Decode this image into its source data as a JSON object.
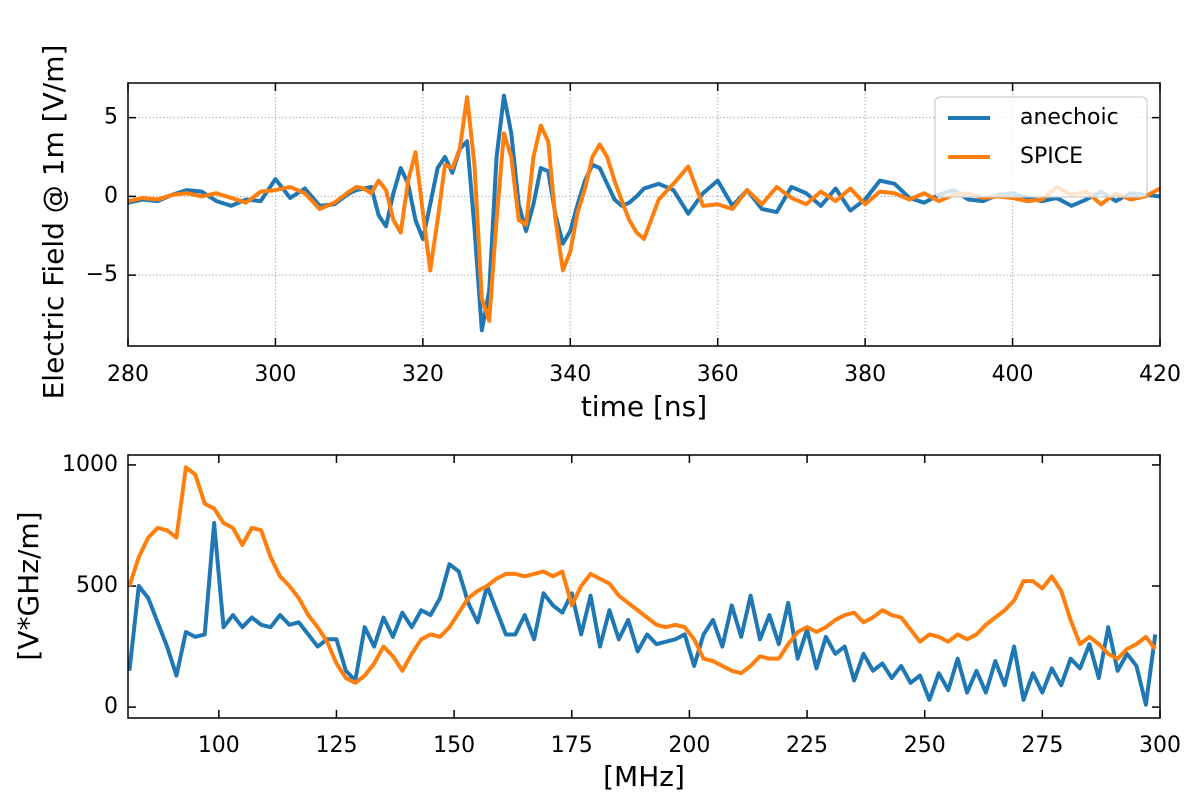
{
  "chart_data": [
    {
      "type": "line",
      "xlabel": "time [ns]",
      "ylabel": "Electric Field @ 1m [V/m]",
      "x": [
        280,
        282,
        284,
        286,
        288,
        290,
        292,
        294,
        296,
        298,
        300,
        302,
        304,
        306,
        308,
        310,
        311,
        312,
        313,
        314,
        315,
        316,
        317,
        318,
        319,
        320,
        321,
        322,
        323,
        324,
        325,
        326,
        327,
        328,
        329,
        330,
        331,
        332,
        333,
        334,
        335,
        336,
        337,
        338,
        339,
        340,
        341,
        342,
        343,
        344,
        345,
        346,
        347,
        348,
        349,
        350,
        352,
        354,
        356,
        358,
        360,
        362,
        364,
        366,
        368,
        370,
        372,
        374,
        376,
        378,
        380,
        382,
        384,
        386,
        388,
        390,
        392,
        394,
        396,
        398,
        400,
        402,
        404,
        406,
        408,
        410,
        412,
        414,
        416,
        418,
        420
      ],
      "series": [
        {
          "name": "anechoic",
          "color": "#1f77b4",
          "values": [
            -0.4,
            -0.2,
            -0.3,
            0.1,
            0.4,
            0.3,
            -0.3,
            -0.6,
            -0.2,
            -0.3,
            1.1,
            -0.1,
            0.5,
            -0.6,
            -0.5,
            0.2,
            0.4,
            0.5,
            0.6,
            -1.2,
            -1.9,
            0.2,
            1.8,
            0.8,
            -1.5,
            -2.7,
            -0.5,
            1.8,
            2.5,
            1.5,
            3.0,
            3.5,
            -2,
            -8.5,
            -6,
            2.5,
            6.4,
            4,
            -0.5,
            -2.2,
            -0.5,
            1.8,
            1.6,
            -1.2,
            -3.0,
            -2.2,
            -0.5,
            1.0,
            2.0,
            1.8,
            0.8,
            -0.2,
            -0.6,
            -0.4,
            0,
            0.5,
            0.8,
            0.4,
            -1.1,
            0.2,
            1.0,
            -0.6,
            0.4,
            -0.8,
            -1.0,
            0.6,
            0.2,
            -0.6,
            0.5,
            -0.9,
            -0.2,
            1.0,
            0.8,
            -0.1,
            -0.4,
            0.1,
            0.4,
            -0.2,
            -0.3,
            0.1,
            0.2,
            -0.1,
            -0.3,
            -0.1,
            -0.6,
            -0.2,
            0.3,
            -0.3,
            0.2,
            0.1,
            0.0
          ]
        },
        {
          "name": "SPICE",
          "color": "#ff7f0e",
          "values": [
            -0.3,
            -0.1,
            -0.2,
            0.1,
            0.2,
            0,
            0.2,
            -0.1,
            -0.4,
            0.3,
            0.4,
            0.6,
            0.2,
            -0.8,
            -0.4,
            0.3,
            0.6,
            0.5,
            0.2,
            1.0,
            0.4,
            -1.5,
            -2.3,
            1.0,
            2.8,
            -1.0,
            -4.7,
            -1.5,
            2.0,
            1.8,
            3.0,
            6.3,
            2,
            -6.5,
            -7.9,
            -1.5,
            4.0,
            2.5,
            -1.5,
            -1.8,
            2.5,
            4.5,
            3.5,
            -1.5,
            -4.7,
            -3.5,
            -1.0,
            0.5,
            2.5,
            3.3,
            2.5,
            1.0,
            -0.3,
            -1.5,
            -2.3,
            -2.7,
            -0.2,
            0.8,
            1.9,
            -0.6,
            -0.5,
            -0.8,
            0.4,
            -0.5,
            0.6,
            -0.1,
            -0.5,
            0.3,
            -0.3,
            0.5,
            -0.5,
            0.3,
            0.2,
            -0.2,
            0.2,
            -0.3,
            0.1,
            0.2,
            -0.1,
            0.0,
            -0.1,
            -0.3,
            -0.2,
            0.6,
            0.1,
            0.3,
            -0.5,
            0.2,
            -0.2,
            0.0,
            0.5
          ]
        }
      ],
      "xlim": [
        280,
        420
      ],
      "xticks": [
        280,
        300,
        320,
        340,
        360,
        380,
        400,
        420
      ],
      "ylim": [
        -9.5,
        7.2
      ],
      "yticks": [
        {
          "value": -5,
          "label": "−5"
        },
        0,
        5
      ],
      "grid": true,
      "legend": "upper right"
    },
    {
      "type": "line",
      "xlabel": "[MHz]",
      "ylabel": "[V*GHz/m]",
      "x": [
        81,
        83,
        85,
        87,
        89,
        91,
        93,
        95,
        97,
        99,
        101,
        103,
        105,
        107,
        109,
        111,
        113,
        115,
        117,
        119,
        121,
        123,
        125,
        127,
        129,
        131,
        133,
        135,
        137,
        139,
        141,
        143,
        145,
        147,
        149,
        151,
        153,
        155,
        157,
        159,
        161,
        163,
        165,
        167,
        169,
        171,
        173,
        175,
        177,
        179,
        181,
        183,
        185,
        187,
        189,
        191,
        193,
        195,
        197,
        199,
        201,
        203,
        205,
        207,
        209,
        211,
        213,
        215,
        217,
        219,
        221,
        223,
        225,
        227,
        229,
        231,
        233,
        235,
        237,
        239,
        241,
        243,
        245,
        247,
        249,
        251,
        253,
        255,
        257,
        259,
        261,
        263,
        265,
        267,
        269,
        271,
        273,
        275,
        277,
        279,
        281,
        283,
        285,
        287,
        289,
        291,
        293,
        295,
        297,
        299
      ],
      "series": [
        {
          "name": "anechoic",
          "color": "#1f77b4",
          "values": [
            150,
            500,
            450,
            350,
            250,
            130,
            310,
            290,
            300,
            760,
            330,
            380,
            330,
            370,
            340,
            330,
            380,
            340,
            350,
            300,
            250,
            280,
            280,
            150,
            110,
            330,
            250,
            370,
            290,
            390,
            330,
            400,
            380,
            450,
            590,
            560,
            430,
            350,
            500,
            400,
            300,
            300,
            380,
            280,
            470,
            420,
            390,
            470,
            300,
            460,
            250,
            400,
            280,
            360,
            230,
            300,
            260,
            270,
            280,
            300,
            170,
            300,
            360,
            250,
            420,
            290,
            460,
            280,
            380,
            260,
            430,
            200,
            320,
            160,
            290,
            220,
            250,
            110,
            220,
            150,
            180,
            120,
            170,
            100,
            130,
            30,
            140,
            70,
            200,
            60,
            150,
            60,
            190,
            90,
            250,
            30,
            140,
            60,
            160,
            90,
            200,
            160,
            260,
            120,
            330,
            150,
            220,
            170,
            10,
            300
          ]
        },
        {
          "name": "SPICE",
          "color": "#ff7f0e",
          "values": [
            500,
            620,
            700,
            740,
            730,
            700,
            990,
            960,
            840,
            820,
            760,
            740,
            670,
            740,
            730,
            620,
            540,
            500,
            450,
            380,
            330,
            270,
            180,
            120,
            100,
            130,
            180,
            250,
            210,
            150,
            220,
            280,
            300,
            290,
            330,
            390,
            450,
            480,
            500,
            530,
            550,
            550,
            540,
            550,
            560,
            540,
            560,
            420,
            500,
            550,
            530,
            510,
            460,
            430,
            400,
            370,
            340,
            330,
            340,
            330,
            280,
            200,
            190,
            170,
            150,
            140,
            170,
            210,
            200,
            200,
            260,
            310,
            330,
            310,
            330,
            360,
            380,
            390,
            350,
            370,
            400,
            380,
            370,
            320,
            270,
            300,
            290,
            270,
            300,
            280,
            300,
            340,
            370,
            400,
            440,
            520,
            520,
            490,
            540,
            480,
            360,
            260,
            290,
            260,
            220,
            200,
            240,
            260,
            290,
            240
          ]
        }
      ],
      "xlim": [
        80.7,
        300
      ],
      "xticks": [
        100,
        125,
        150,
        175,
        200,
        225,
        250,
        275,
        300
      ],
      "ylim": [
        -45,
        1041
      ],
      "yticks": [
        0,
        500,
        1000
      ],
      "grid": false
    }
  ]
}
